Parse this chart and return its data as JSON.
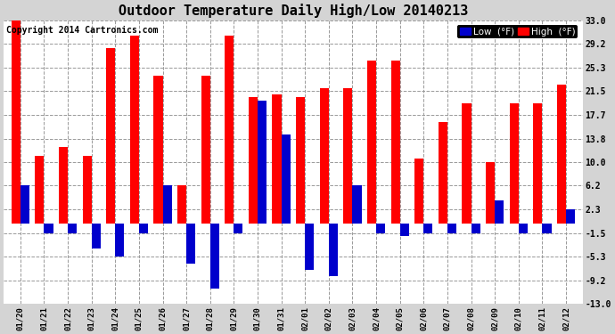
{
  "title": "Outdoor Temperature Daily High/Low 20140213",
  "copyright": "Copyright 2014 Cartronics.com",
  "legend_low": "Low  (°F)",
  "legend_high": "High  (°F)",
  "dates": [
    "01/20",
    "01/21",
    "01/22",
    "01/23",
    "01/24",
    "01/25",
    "01/26",
    "01/27",
    "01/28",
    "01/29",
    "01/30",
    "01/31",
    "02/01",
    "02/02",
    "02/03",
    "02/04",
    "02/05",
    "02/06",
    "02/07",
    "02/08",
    "02/09",
    "02/10",
    "02/11",
    "02/12"
  ],
  "highs": [
    33.0,
    11.0,
    12.5,
    11.0,
    28.5,
    30.5,
    24.0,
    6.2,
    24.0,
    30.5,
    20.5,
    21.0,
    20.5,
    22.0,
    22.0,
    26.5,
    26.5,
    10.5,
    16.5,
    19.5,
    10.0,
    19.5,
    19.5,
    22.5
  ],
  "lows": [
    6.2,
    -1.5,
    -1.5,
    -4.0,
    -5.3,
    -1.5,
    6.2,
    -6.5,
    -10.5,
    -1.5,
    20.0,
    14.5,
    -7.5,
    -8.5,
    6.2,
    -1.5,
    -2.0,
    -1.5,
    -1.5,
    -1.5,
    3.8,
    -1.5,
    -1.5,
    2.3
  ],
  "ylim": [
    -13.0,
    33.0
  ],
  "yticks": [
    -13.0,
    -9.2,
    -5.3,
    -1.5,
    2.3,
    6.2,
    10.0,
    13.8,
    17.7,
    21.5,
    25.3,
    29.2,
    33.0
  ],
  "bg_color": "#d4d4d4",
  "plot_bg": "#ffffff",
  "bar_high_color": "#ff0000",
  "bar_low_color": "#0000cc",
  "grid_color": "#999999",
  "title_fontsize": 11,
  "copyright_fontsize": 7,
  "bar_width": 0.38
}
